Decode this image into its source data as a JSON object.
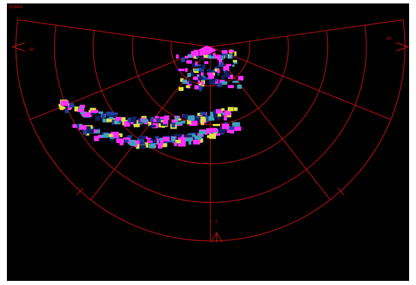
{
  "header": {
    "title": "SONAR"
  },
  "scale": {
    "left": "90",
    "right": "90",
    "center": "0"
  }
}
